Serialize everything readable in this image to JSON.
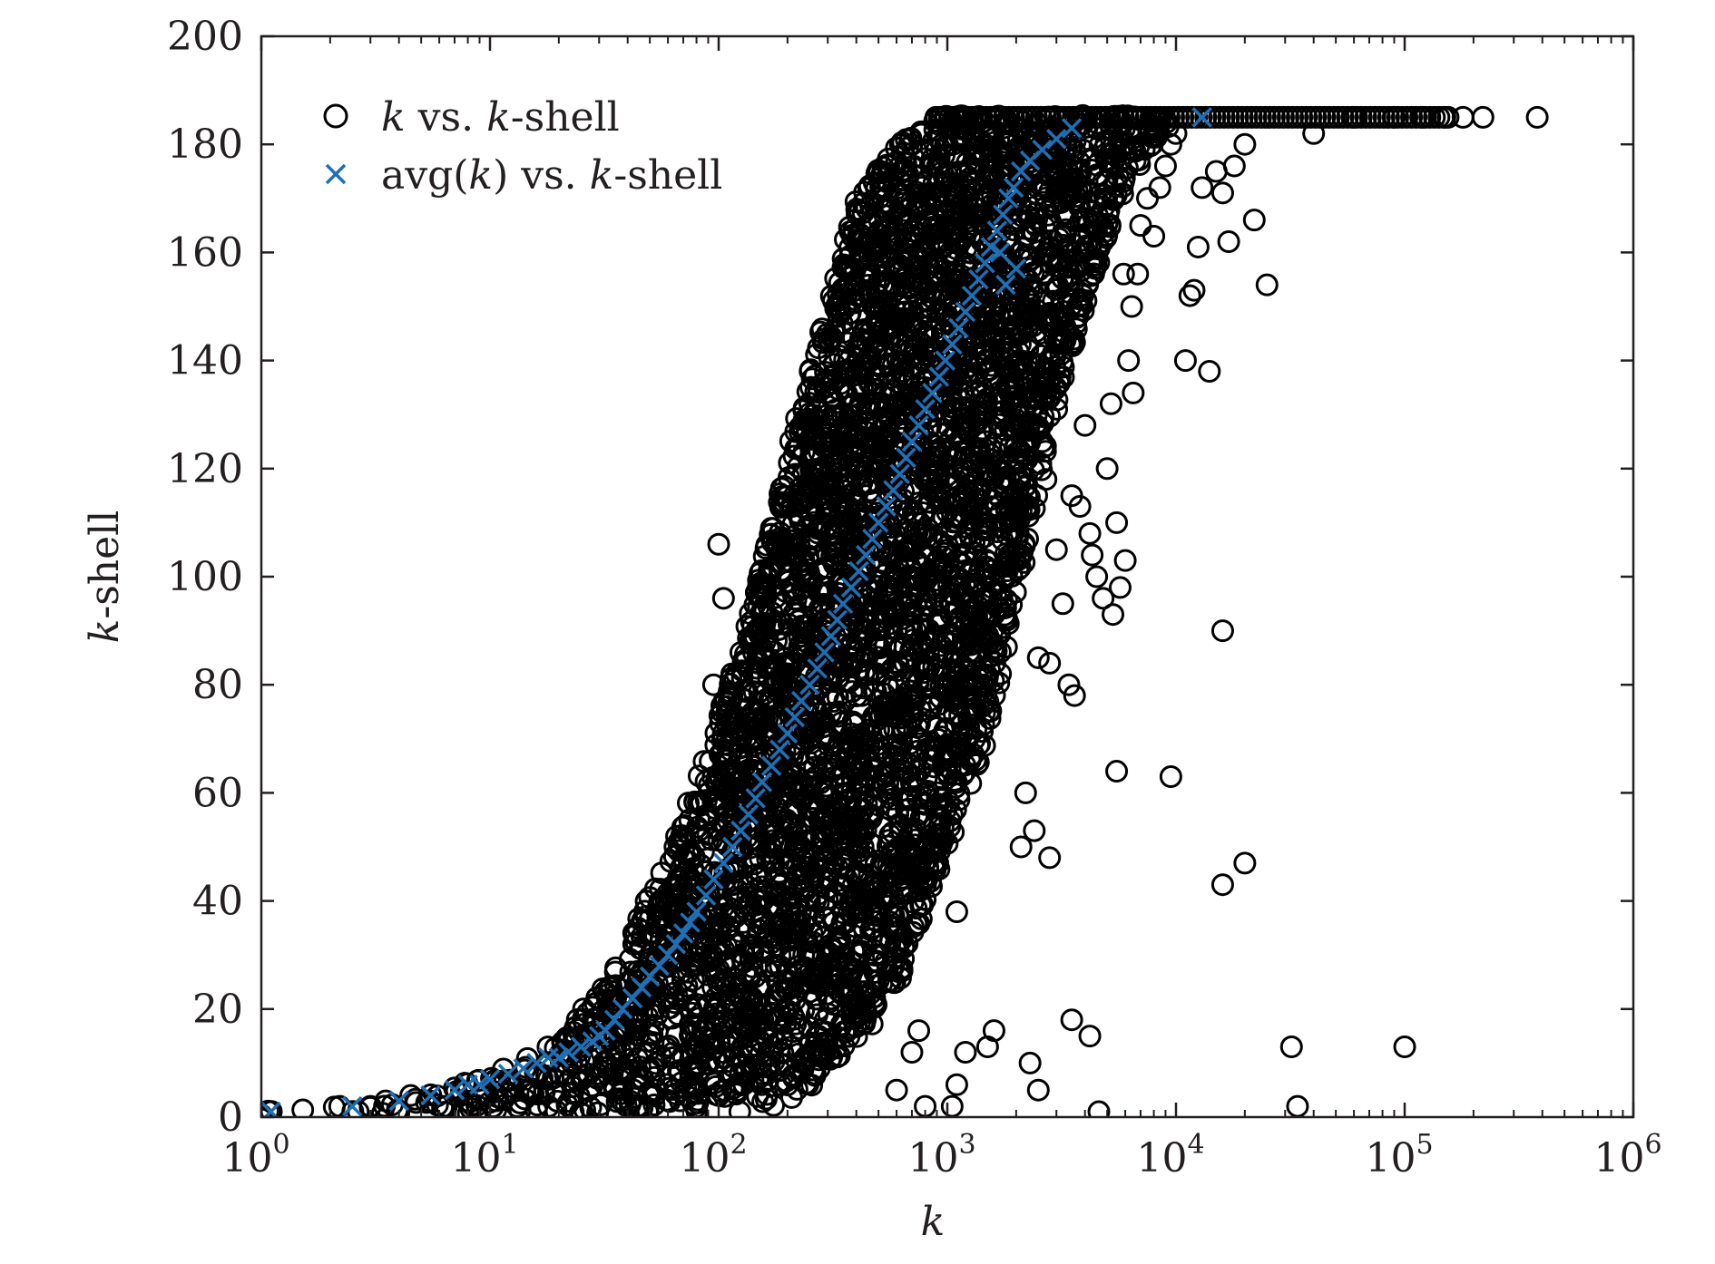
{
  "chart_data": {
    "type": "scatter",
    "title": "",
    "xlabel": "k",
    "ylabel": "k-shell",
    "x_scale": "log",
    "xlim": [
      1,
      1000000
    ],
    "ylim": [
      0,
      200
    ],
    "x_ticks": [
      {
        "base": "10",
        "exp": "0",
        "value": 1
      },
      {
        "base": "10",
        "exp": "1",
        "value": 10
      },
      {
        "base": "10",
        "exp": "2",
        "value": 100
      },
      {
        "base": "10",
        "exp": "3",
        "value": 1000
      },
      {
        "base": "10",
        "exp": "4",
        "value": 10000
      },
      {
        "base": "10",
        "exp": "5",
        "value": 100000
      },
      {
        "base": "10",
        "exp": "6",
        "value": 1000000
      }
    ],
    "y_ticks": [
      "0",
      "20",
      "40",
      "60",
      "80",
      "100",
      "120",
      "140",
      "160",
      "180",
      "200"
    ],
    "grid": false,
    "legend_position": "top-left",
    "legend": [
      {
        "marker": "circle",
        "parts": [
          {
            "text": "k",
            "italic": true
          },
          {
            "text": " vs. ",
            "italic": false
          },
          {
            "text": "k",
            "italic": true
          },
          {
            "text": "-shell",
            "italic": false
          }
        ]
      },
      {
        "marker": "x",
        "parts": [
          {
            "text": "avg(",
            "italic": false
          },
          {
            "text": "k",
            "italic": true
          },
          {
            "text": ") vs. ",
            "italic": false
          },
          {
            "text": "k",
            "italic": true
          },
          {
            "text": "-shell",
            "italic": false
          }
        ]
      }
    ],
    "series": [
      {
        "name": "k vs. k-shell",
        "marker": "circle",
        "color": "#000000",
        "band_lower_x": [
          [
            1,
            0
          ],
          [
            2,
            0
          ],
          [
            5,
            0
          ],
          [
            10,
            0
          ],
          [
            30,
            0
          ],
          [
            80,
            0
          ],
          [
            200,
            2
          ],
          [
            300,
            8
          ],
          [
            500,
            18
          ],
          [
            700,
            30
          ],
          [
            1000,
            50
          ],
          [
            1500,
            70
          ],
          [
            2000,
            95
          ],
          [
            3000,
            130
          ],
          [
            4000,
            150
          ],
          [
            6000,
            172
          ],
          [
            10000,
            185
          ]
        ],
        "band_upper_x": [
          [
            1,
            1
          ],
          [
            2,
            2
          ],
          [
            5,
            4
          ],
          [
            10,
            8
          ],
          [
            20,
            14
          ],
          [
            35,
            28
          ],
          [
            55,
            45
          ],
          [
            80,
            62
          ],
          [
            120,
            85
          ],
          [
            170,
            110
          ],
          [
            220,
            130
          ],
          [
            300,
            150
          ],
          [
            400,
            170
          ],
          [
            600,
            180
          ],
          [
            900,
            185
          ]
        ],
        "outliers": [
          [
            1.1,
            1
          ],
          [
            2.2,
            2
          ],
          [
            3,
            2
          ],
          [
            3.5,
            3
          ],
          [
            4.5,
            4
          ],
          [
            100,
            106
          ],
          [
            105,
            96
          ],
          [
            95,
            80
          ],
          [
            2600,
            125
          ],
          [
            2700,
            118
          ],
          [
            3000,
            105
          ],
          [
            3500,
            115
          ],
          [
            4000,
            128
          ],
          [
            4200,
            108
          ],
          [
            4500,
            100
          ],
          [
            5000,
            120
          ],
          [
            5500,
            110
          ],
          [
            6000,
            103
          ],
          [
            6500,
            134
          ],
          [
            5700,
            98
          ],
          [
            6200,
            140
          ],
          [
            5200,
            132
          ],
          [
            4800,
            96
          ],
          [
            3200,
            95
          ],
          [
            2500,
            85
          ],
          [
            2800,
            84
          ],
          [
            3400,
            80
          ],
          [
            3600,
            78
          ],
          [
            2200,
            60
          ],
          [
            2100,
            50
          ],
          [
            2400,
            53
          ],
          [
            2800,
            48
          ],
          [
            3800,
            113
          ],
          [
            4300,
            104
          ],
          [
            5300,
            93
          ],
          [
            5900,
            156
          ],
          [
            6400,
            150
          ],
          [
            6800,
            156
          ],
          [
            7000,
            165
          ],
          [
            7500,
            170
          ],
          [
            8000,
            163
          ],
          [
            8500,
            172
          ],
          [
            9000,
            176
          ],
          [
            9500,
            180
          ],
          [
            10000,
            182
          ],
          [
            11000,
            140
          ],
          [
            11500,
            152
          ],
          [
            12000,
            153
          ],
          [
            12500,
            161
          ],
          [
            13000,
            172
          ],
          [
            14000,
            138
          ],
          [
            15000,
            175
          ],
          [
            16000,
            171
          ],
          [
            17000,
            162
          ],
          [
            18000,
            176
          ],
          [
            20000,
            180
          ],
          [
            22000,
            166
          ],
          [
            25000,
            154
          ],
          [
            16000,
            90
          ],
          [
            9500,
            63
          ],
          [
            5500,
            64
          ],
          [
            20000,
            47
          ],
          [
            16000,
            43
          ],
          [
            1100,
            38
          ],
          [
            1200,
            12
          ],
          [
            1100,
            6
          ],
          [
            1050,
            2
          ],
          [
            800,
            2
          ],
          [
            750,
            16
          ],
          [
            700,
            12
          ],
          [
            600,
            5
          ],
          [
            1500,
            13
          ],
          [
            1600,
            16
          ],
          [
            2300,
            10
          ],
          [
            2500,
            5
          ],
          [
            3500,
            18
          ],
          [
            4200,
            15
          ],
          [
            4600,
            1
          ],
          [
            32000,
            13
          ],
          [
            34000,
            2
          ],
          [
            100000,
            13
          ],
          [
            40000,
            182
          ],
          [
            60000,
            185
          ],
          [
            90000,
            185
          ],
          [
            120000,
            185
          ],
          [
            150000,
            185
          ],
          [
            180000,
            185
          ],
          [
            220000,
            185
          ],
          [
            380000,
            185
          ]
        ]
      },
      {
        "name": "avg(k) vs. k-shell",
        "marker": "x",
        "color": "#1f6fb4",
        "points": [
          [
            1.1,
            1
          ],
          [
            2.5,
            2
          ],
          [
            4,
            3
          ],
          [
            5.5,
            4
          ],
          [
            7,
            5
          ],
          [
            8,
            6
          ],
          [
            9,
            6
          ],
          [
            10,
            7
          ],
          [
            12,
            8
          ],
          [
            14,
            9
          ],
          [
            16,
            10
          ],
          [
            18,
            11
          ],
          [
            20,
            11
          ],
          [
            22,
            12
          ],
          [
            25,
            13
          ],
          [
            28,
            14
          ],
          [
            30,
            15
          ],
          [
            32,
            16
          ],
          [
            35,
            18
          ],
          [
            38,
            20
          ],
          [
            42,
            22
          ],
          [
            46,
            24
          ],
          [
            50,
            26
          ],
          [
            55,
            28
          ],
          [
            60,
            30
          ],
          [
            65,
            32
          ],
          [
            70,
            34
          ],
          [
            75,
            36
          ],
          [
            80,
            38
          ],
          [
            88,
            41
          ],
          [
            95,
            44
          ],
          [
            105,
            47
          ],
          [
            115,
            50
          ],
          [
            125,
            53
          ],
          [
            135,
            56
          ],
          [
            145,
            59
          ],
          [
            155,
            62
          ],
          [
            170,
            65
          ],
          [
            185,
            68
          ],
          [
            200,
            71
          ],
          [
            215,
            74
          ],
          [
            230,
            77
          ],
          [
            250,
            80
          ],
          [
            270,
            83
          ],
          [
            290,
            86
          ],
          [
            310,
            89
          ],
          [
            330,
            92
          ],
          [
            350,
            95
          ],
          [
            380,
            98
          ],
          [
            410,
            101
          ],
          [
            440,
            104
          ],
          [
            470,
            107
          ],
          [
            500,
            110
          ],
          [
            540,
            113
          ],
          [
            580,
            116
          ],
          [
            620,
            119
          ],
          [
            660,
            122
          ],
          [
            700,
            125
          ],
          [
            750,
            128
          ],
          [
            800,
            131
          ],
          [
            860,
            134
          ],
          [
            920,
            137
          ],
          [
            980,
            140
          ],
          [
            1050,
            143
          ],
          [
            1120,
            146
          ],
          [
            1200,
            149
          ],
          [
            1280,
            152
          ],
          [
            1370,
            155
          ],
          [
            1460,
            158
          ],
          [
            1550,
            161
          ],
          [
            1650,
            164
          ],
          [
            1750,
            167
          ],
          [
            1850,
            170
          ],
          [
            1950,
            172
          ],
          [
            2100,
            175
          ],
          [
            2300,
            177
          ],
          [
            2600,
            179
          ],
          [
            3000,
            181
          ],
          [
            3500,
            183
          ],
          [
            1800,
            154
          ],
          [
            2000,
            157
          ],
          [
            1700,
            160
          ],
          [
            13000,
            185
          ]
        ]
      }
    ]
  }
}
